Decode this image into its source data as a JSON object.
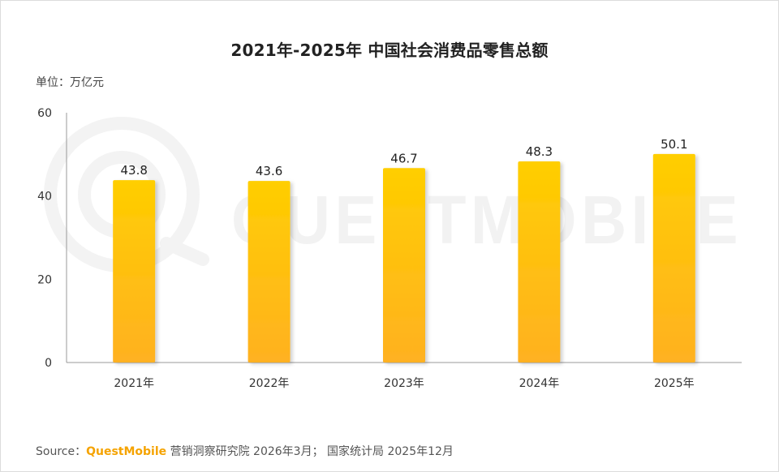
{
  "chart_data": {
    "type": "bar",
    "title": "2021年-2025年 中国社会消费品零售总额",
    "ylabel": "单位：万亿元",
    "xlabel": "",
    "categories": [
      "2021年",
      "2022年",
      "2023年",
      "2024年",
      "2025年"
    ],
    "values": [
      43.8,
      43.6,
      46.7,
      48.3,
      50.1
    ],
    "data_labels": [
      "43.8",
      "43.6",
      "46.7",
      "48.3",
      "50.1"
    ],
    "ylim": [
      0,
      60
    ],
    "yticks": [
      "0",
      "20",
      "40",
      "60"
    ],
    "ytick_values": [
      0,
      20,
      40,
      60
    ],
    "grid": false,
    "legend": "none",
    "bar_colors": {
      "top": "#FFCE00",
      "bottom": "#FFB121"
    }
  },
  "footer": {
    "source_prefix": "Source：",
    "brand": "QuestMobile",
    "source_rest": " 营销洞察研究院 2026年3月； 国家统计局 2025年12月"
  },
  "watermark": {
    "text": "QUESTMOBILE",
    "color": "#f2f2f2"
  }
}
